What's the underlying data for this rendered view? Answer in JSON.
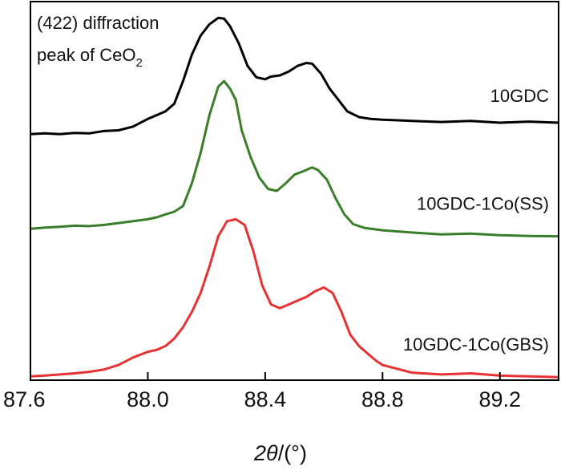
{
  "chart_data": {
    "type": "line",
    "title": "",
    "xlabel": "2θ/(°)",
    "xlabel_parts": {
      "symbol": "2θ",
      "unit": "/(°)"
    },
    "ylabel": "",
    "xlim": [
      87.6,
      89.4
    ],
    "ylim": [
      0,
      1
    ],
    "xticks": [
      87.6,
      88.0,
      88.4,
      88.8,
      89.2
    ],
    "xtick_labels": [
      "87.6",
      "88.0",
      "88.4",
      "88.8",
      "89.2"
    ],
    "grid": false,
    "annotation": {
      "line1": "(422) diffraction",
      "line2_main": "peak of CeO",
      "line2_sub": "2"
    },
    "series": [
      {
        "name": "10GDC",
        "color": "#000000",
        "x": [
          87.6,
          87.65,
          87.7,
          87.75,
          87.8,
          87.85,
          87.9,
          87.95,
          88.0,
          88.03,
          88.06,
          88.09,
          88.12,
          88.15,
          88.18,
          88.21,
          88.24,
          88.26,
          88.28,
          88.31,
          88.34,
          88.37,
          88.4,
          88.42,
          88.45,
          88.48,
          88.51,
          88.54,
          88.56,
          88.59,
          88.62,
          88.65,
          88.68,
          88.72,
          88.76,
          88.8,
          88.9,
          89.0,
          89.1,
          89.2,
          89.3,
          89.4
        ],
        "values": [
          0.65,
          0.652,
          0.65,
          0.653,
          0.652,
          0.658,
          0.66,
          0.67,
          0.69,
          0.7,
          0.71,
          0.73,
          0.79,
          0.86,
          0.91,
          0.94,
          0.957,
          0.955,
          0.935,
          0.89,
          0.83,
          0.8,
          0.795,
          0.802,
          0.805,
          0.815,
          0.83,
          0.838,
          0.836,
          0.81,
          0.77,
          0.74,
          0.71,
          0.695,
          0.69,
          0.688,
          0.685,
          0.682,
          0.685,
          0.68,
          0.683,
          0.68
        ]
      },
      {
        "name": "10GDC-1Co(SS)",
        "color": "#3a7d2a",
        "x": [
          87.6,
          87.65,
          87.7,
          87.75,
          87.8,
          87.85,
          87.9,
          87.95,
          88.0,
          88.03,
          88.06,
          88.09,
          88.12,
          88.15,
          88.18,
          88.21,
          88.24,
          88.26,
          88.28,
          88.3,
          88.32,
          88.35,
          88.38,
          88.41,
          88.44,
          88.47,
          88.5,
          88.53,
          88.56,
          88.58,
          88.61,
          88.64,
          88.67,
          88.7,
          88.74,
          88.8,
          88.9,
          89.0,
          89.1,
          89.2,
          89.3,
          89.4
        ],
        "values": [
          0.4,
          0.403,
          0.405,
          0.408,
          0.407,
          0.41,
          0.415,
          0.42,
          0.425,
          0.43,
          0.438,
          0.445,
          0.46,
          0.52,
          0.6,
          0.7,
          0.775,
          0.79,
          0.77,
          0.74,
          0.66,
          0.59,
          0.535,
          0.505,
          0.5,
          0.52,
          0.543,
          0.552,
          0.562,
          0.555,
          0.53,
          0.48,
          0.438,
          0.412,
          0.402,
          0.396,
          0.39,
          0.385,
          0.387,
          0.383,
          0.381,
          0.38
        ]
      },
      {
        "name": "10GDC-1Co(GBS)",
        "color": "#e63232",
        "x": [
          87.6,
          87.65,
          87.7,
          87.75,
          87.8,
          87.85,
          87.9,
          87.95,
          88.0,
          88.03,
          88.06,
          88.09,
          88.12,
          88.15,
          88.18,
          88.21,
          88.24,
          88.27,
          88.3,
          88.33,
          88.36,
          88.39,
          88.42,
          88.45,
          88.48,
          88.51,
          88.54,
          88.57,
          88.6,
          88.63,
          88.66,
          88.69,
          88.72,
          88.75,
          88.78,
          88.8,
          88.9,
          89.0,
          89.1,
          89.2,
          89.3,
          89.4
        ],
        "values": [
          0.01,
          0.012,
          0.015,
          0.018,
          0.022,
          0.028,
          0.04,
          0.06,
          0.075,
          0.08,
          0.09,
          0.11,
          0.14,
          0.18,
          0.23,
          0.3,
          0.38,
          0.42,
          0.425,
          0.41,
          0.34,
          0.25,
          0.2,
          0.19,
          0.2,
          0.21,
          0.22,
          0.235,
          0.245,
          0.23,
          0.18,
          0.12,
          0.09,
          0.07,
          0.05,
          0.04,
          0.02,
          0.015,
          0.018,
          0.012,
          0.01,
          0.008
        ]
      }
    ]
  }
}
